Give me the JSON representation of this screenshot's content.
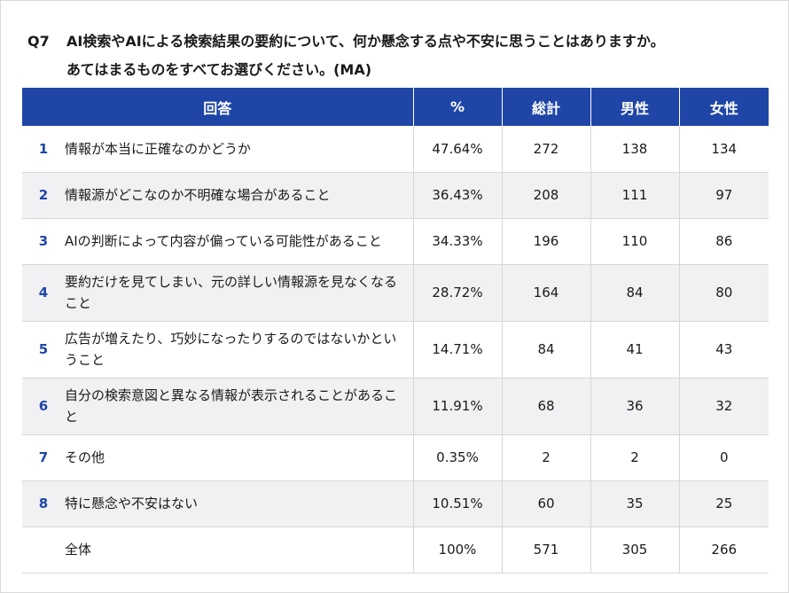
{
  "question": {
    "number": "Q7",
    "line1": "AI検索やAIによる検索結果の要約について、何か懸念する点や不安に思うことはありますか。",
    "line2": "あてはまるものをすべてお選びください。(MA)"
  },
  "table": {
    "headers": {
      "answer": "回答",
      "percent": "%",
      "total": "総計",
      "male": "男性",
      "female": "女性"
    },
    "rows": [
      {
        "num": "1",
        "answer": "情報が本当に正確なのかどうか",
        "percent": "47.64%",
        "total": "272",
        "male": "138",
        "female": "134"
      },
      {
        "num": "2",
        "answer": "情報源がどこなのか不明確な場合があること",
        "percent": "36.43%",
        "total": "208",
        "male": "111",
        "female": "97"
      },
      {
        "num": "3",
        "answer": "AIの判断によって内容が偏っている可能性があること",
        "percent": "34.33%",
        "total": "196",
        "male": "110",
        "female": "86"
      },
      {
        "num": "4",
        "answer": "要約だけを見てしまい、元の詳しい情報源を見なくなること",
        "percent": "28.72%",
        "total": "164",
        "male": "84",
        "female": "80"
      },
      {
        "num": "5",
        "answer": "広告が増えたり、巧妙になったりするのではないかということ",
        "percent": "14.71%",
        "total": "84",
        "male": "41",
        "female": "43"
      },
      {
        "num": "6",
        "answer": "自分の検索意図と異なる情報が表示されることがあること",
        "percent": "11.91%",
        "total": "68",
        "male": "36",
        "female": "32"
      },
      {
        "num": "7",
        "answer": "その他",
        "percent": "0.35%",
        "total": "2",
        "male": "2",
        "female": "0"
      },
      {
        "num": "8",
        "answer": "特に懸念や不安はない",
        "percent": "10.51%",
        "total": "60",
        "male": "35",
        "female": "25"
      }
    ],
    "total_row": {
      "label": "全体",
      "percent": "100%",
      "total": "571",
      "male": "305",
      "female": "266"
    }
  },
  "colors": {
    "header_bg": "#1f46a6",
    "number_color": "#1f46a6",
    "stripe_bg": "#f1f1f4"
  }
}
